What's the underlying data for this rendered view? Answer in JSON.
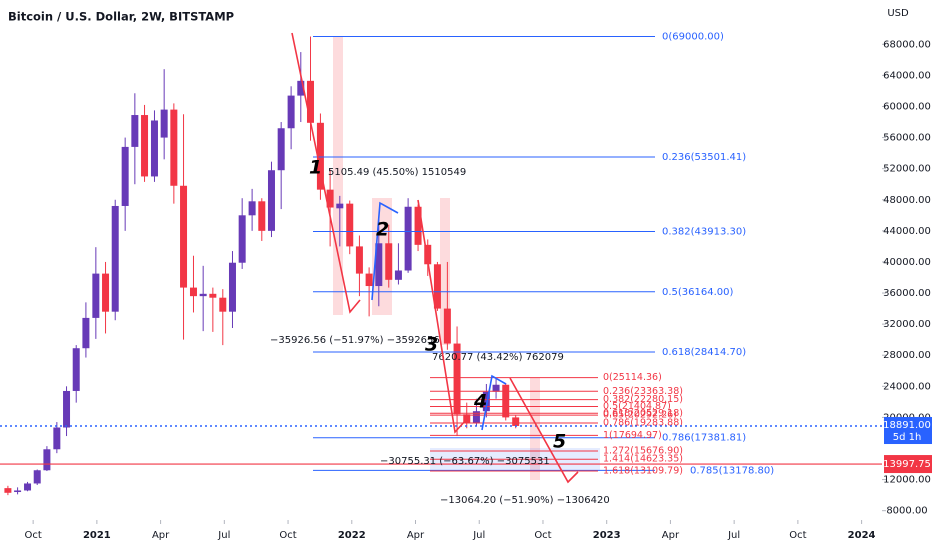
{
  "chart_data": {
    "type": "candlestick",
    "title": "Bitcoin / U.S. Dollar, 2W, BITSTAMP",
    "currency": "USD",
    "up_color": "#673ab7",
    "down_color": "#f23645",
    "x": [
      2020.651,
      2020.689,
      2020.728,
      2020.766,
      2020.804,
      2020.843,
      2020.881,
      2020.919,
      2020.957,
      2020.996,
      2021.034,
      2021.072,
      2021.111,
      2021.149,
      2021.187,
      2021.226,
      2021.264,
      2021.302,
      2021.34,
      2021.379,
      2021.417,
      2021.455,
      2021.494,
      2021.532,
      2021.57,
      2021.609,
      2021.647,
      2021.685,
      2021.723,
      2021.762,
      2021.8,
      2021.838,
      2021.877,
      2021.915,
      2021.953,
      2021.992,
      2022.03,
      2022.068,
      2022.106,
      2022.145,
      2022.183,
      2022.221,
      2022.26,
      2022.298,
      2022.336,
      2022.375,
      2022.413,
      2022.451,
      2022.489,
      2022.528,
      2022.566,
      2022.604,
      2022.643
    ],
    "open": [
      10900,
      10400,
      10600,
      11500,
      13200,
      15900,
      18700,
      23400,
      28900,
      32800,
      38500,
      33600,
      47200,
      54800,
      58900,
      51000,
      56000,
      59600,
      49800,
      36700,
      35600,
      35900,
      35400,
      33600,
      39900,
      46000,
      47800,
      44000,
      51800,
      57200,
      61400,
      63300,
      57900,
      49300,
      46900,
      47500,
      42000,
      38500,
      36900,
      42400,
      37700,
      38900,
      47100,
      42200,
      39700,
      34000,
      29500,
      20400,
      19300,
      20800,
      23300,
      24200,
      20000
    ],
    "high": [
      11200,
      11000,
      11700,
      13300,
      16300,
      19400,
      24000,
      29300,
      34800,
      41900,
      40000,
      48000,
      56000,
      61700,
      60200,
      59500,
      64800,
      60400,
      59000,
      40800,
      39500,
      36700,
      36500,
      41400,
      48200,
      49400,
      48200,
      52900,
      58000,
      62600,
      67000,
      69000,
      59100,
      51900,
      48500,
      47900,
      43400,
      39300,
      45800,
      44800,
      42400,
      48200,
      47400,
      42900,
      40000,
      40000,
      31700,
      21900,
      22400,
      24300,
      25100,
      24400,
      20300
    ],
    "low": [
      10000,
      10100,
      10500,
      11300,
      13100,
      15400,
      17600,
      21900,
      27700,
      30100,
      30800,
      32500,
      44000,
      50000,
      50300,
      50300,
      53200,
      47500,
      30000,
      33500,
      31100,
      31000,
      29300,
      31500,
      39100,
      44000,
      42700,
      43200,
      46800,
      54500,
      58000,
      55600,
      48000,
      42000,
      42000,
      41000,
      35600,
      33000,
      34300,
      36700,
      37100,
      38600,
      41400,
      38200,
      33700,
      28700,
      17600,
      18600,
      18900,
      20000,
      22400,
      19600,
      18600
    ],
    "close": [
      10300,
      10600,
      11500,
      13200,
      15900,
      18700,
      23400,
      28900,
      32800,
      38500,
      33600,
      47200,
      54800,
      58900,
      51000,
      58200,
      59600,
      49800,
      36700,
      35600,
      35900,
      35400,
      33600,
      39900,
      46000,
      47800,
      44000,
      51800,
      57200,
      61400,
      63300,
      57900,
      49300,
      47000,
      47500,
      42000,
      38500,
      36900,
      42400,
      37700,
      38900,
      47100,
      42200,
      39700,
      34000,
      29500,
      20400,
      19300,
      20800,
      23300,
      24200,
      20000,
      18900
    ],
    "xlim": [
      2020.62,
      2024.08
    ],
    "xticks": [
      {
        "value": 2020.75,
        "label": "Oct"
      },
      {
        "value": 2021,
        "label": "2021"
      },
      {
        "value": 2021.25,
        "label": "Apr"
      },
      {
        "value": 2021.5,
        "label": "Jul"
      },
      {
        "value": 2021.75,
        "label": "Oct"
      },
      {
        "value": 2022,
        "label": "2022"
      },
      {
        "value": 2022.25,
        "label": "Apr"
      },
      {
        "value": 2022.5,
        "label": "Jul"
      },
      {
        "value": 2022.75,
        "label": "Oct"
      },
      {
        "value": 2023,
        "label": "2023"
      },
      {
        "value": 2023.25,
        "label": "Apr"
      },
      {
        "value": 2023.5,
        "label": "Jul"
      },
      {
        "value": 2023.75,
        "label": "Oct"
      },
      {
        "value": 2024,
        "label": "2024"
      }
    ],
    "ylim": [
      6800,
      73700
    ],
    "yticks": [
      {
        "value": 68000,
        "label": "68000.00"
      },
      {
        "value": 64000,
        "label": "64000.00"
      },
      {
        "value": 60000,
        "label": "60000.00"
      },
      {
        "value": 56000,
        "label": "56000.00"
      },
      {
        "value": 52000,
        "label": "52000.00"
      },
      {
        "value": 48000,
        "label": "48000.00"
      },
      {
        "value": 44000,
        "label": "44000.00"
      },
      {
        "value": 40000,
        "label": "40000.00"
      },
      {
        "value": 36000,
        "label": "36000.00"
      },
      {
        "value": 32000,
        "label": "32000.00"
      },
      {
        "value": 28000,
        "label": "28000.00"
      },
      {
        "value": 24000,
        "label": "24000.00"
      },
      {
        "value": 20000,
        "label": "20000.00"
      },
      {
        "value": 12000,
        "label": "12000.00"
      },
      {
        "value": 8000,
        "label": "8000.00"
      }
    ],
    "last_price": {
      "value": 18891,
      "label": "18891.00"
    },
    "countdown": "5d 1h",
    "alert_line": {
      "value": 13997.75,
      "label": "13997.75"
    },
    "fib_main_color": "#2962ff",
    "fib_main": [
      {
        "value": 69000,
        "label": "0(69000.00)"
      },
      {
        "value": 53501.41,
        "label": "0.236(53501.41)"
      },
      {
        "value": 43913.3,
        "label": "0.382(43913.30)"
      },
      {
        "value": 36164,
        "label": "0.5(36164.00)"
      },
      {
        "value": 28414.7,
        "label": "0.618(28414.70)"
      },
      {
        "value": 17381.81,
        "label": "0.786(17381.81)"
      },
      {
        "value": 13178.8,
        "label": "0.785(13178.80)"
      }
    ],
    "fib_local_color": "#f23645",
    "fib_local": [
      {
        "value": 25114.36,
        "label": "0(25114.36)"
      },
      {
        "value": 23363.38,
        "label": "0.236(23363.38)"
      },
      {
        "value": 22280.15,
        "label": "0.382(22280.15)"
      },
      {
        "value": 21404.87,
        "label": "0.5(21404.87)"
      },
      {
        "value": 20529.18,
        "label": "0.618(20529.18)"
      },
      {
        "value": 20292.26,
        "label": "0.65(20292.26)"
      },
      {
        "value": 19283.88,
        "label": "0.786(19283.88)"
      },
      {
        "value": 17694.97,
        "label": "1(17694.97)"
      },
      {
        "value": 15676.9,
        "label": "1.272(15676.90)"
      },
      {
        "value": 14623.35,
        "label": "1.414(14623.35)"
      },
      {
        "value": 13109.79,
        "label": "1.618(13109.79)"
      }
    ],
    "measurements": [
      "5105.49 (45.50%) 1510549",
      "−35926.56 (−51.97%) −3592656",
      "7620.77 (43.42%) 762079",
      "−30755.31 (−63.67%) −3075531",
      "−13064.20 (−51.90%) −1306420"
    ],
    "waves": [
      "1",
      "2",
      "3",
      "4",
      "5"
    ]
  }
}
